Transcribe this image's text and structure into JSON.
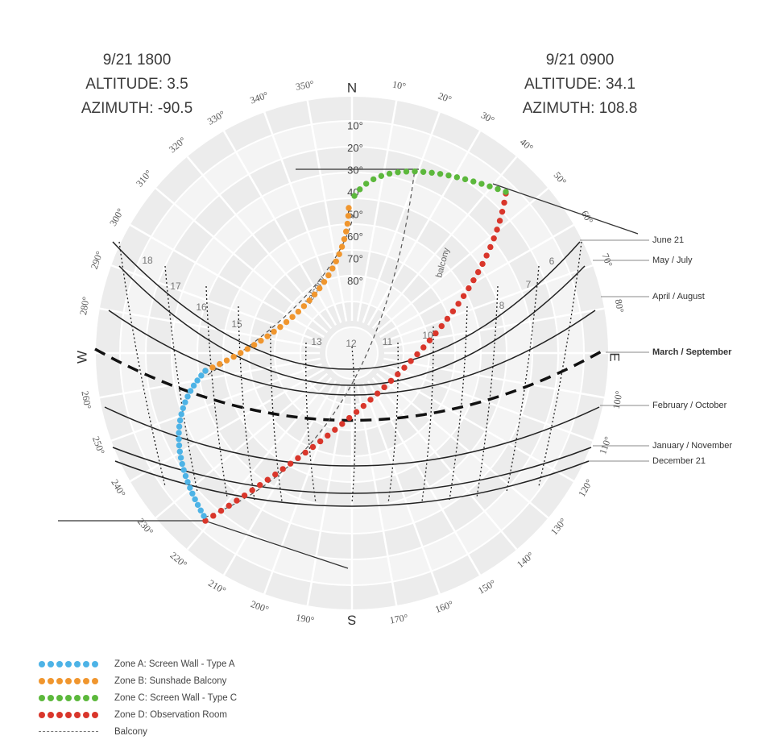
{
  "corner_left": {
    "line1": "9/21 1800",
    "line2": "ALTITUDE: 3.5",
    "line3": "AZIMUTH: -90.5"
  },
  "corner_right": {
    "line1": "9/21 0900",
    "line2": "ALTITUDE: 34.1",
    "line3": "AZIMUTH: 108.8"
  },
  "cardinals": {
    "north": "N",
    "south": "S",
    "east": "E",
    "west": "W"
  },
  "azimuth_labels": [
    {
      "az": 10,
      "label": "10°"
    },
    {
      "az": 20,
      "label": "20°"
    },
    {
      "az": 30,
      "label": "30°"
    },
    {
      "az": 40,
      "label": "40°"
    },
    {
      "az": 50,
      "label": "50°"
    },
    {
      "az": 60,
      "label": "60°"
    },
    {
      "az": 70,
      "label": "70°"
    },
    {
      "az": 80,
      "label": "80°"
    },
    {
      "az": 100,
      "label": "100°"
    },
    {
      "az": 110,
      "label": "110°"
    },
    {
      "az": 120,
      "label": "120°"
    },
    {
      "az": 130,
      "label": "130°"
    },
    {
      "az": 140,
      "label": "140°"
    },
    {
      "az": 150,
      "label": "150°"
    },
    {
      "az": 160,
      "label": "160°"
    },
    {
      "az": 170,
      "label": "170°"
    },
    {
      "az": 190,
      "label": "190°"
    },
    {
      "az": 200,
      "label": "200°"
    },
    {
      "az": 210,
      "label": "210°"
    },
    {
      "az": 220,
      "label": "220°"
    },
    {
      "az": 230,
      "label": "230°"
    },
    {
      "az": 240,
      "label": "240°"
    },
    {
      "az": 250,
      "label": "250°"
    },
    {
      "az": 260,
      "label": "260°"
    },
    {
      "az": 280,
      "label": "280°"
    },
    {
      "az": 290,
      "label": "290°"
    },
    {
      "az": 300,
      "label": "300°"
    },
    {
      "az": 310,
      "label": "310°"
    },
    {
      "az": 320,
      "label": "320°"
    },
    {
      "az": 330,
      "label": "330°"
    },
    {
      "az": 340,
      "label": "340°"
    },
    {
      "az": 350,
      "label": "350°"
    }
  ],
  "altitude_labels": [
    {
      "alt": 10,
      "label": "10°"
    },
    {
      "alt": 20,
      "label": "20°"
    },
    {
      "alt": 30,
      "label": "30°"
    },
    {
      "alt": 40,
      "label": "40°"
    },
    {
      "alt": 50,
      "label": "50°"
    },
    {
      "alt": 60,
      "label": "60°"
    },
    {
      "alt": 70,
      "label": "70°"
    },
    {
      "alt": 80,
      "label": "80°"
    }
  ],
  "hour_labels": [
    "6",
    "7",
    "8",
    "10",
    "11",
    "12",
    "13",
    "15",
    "16",
    "17",
    "18"
  ],
  "date_labels": [
    {
      "label": "June 21",
      "bold": false
    },
    {
      "label": "May / July",
      "bold": false
    },
    {
      "label": "April / August",
      "bold": false
    },
    {
      "label": "March / September",
      "bold": true
    },
    {
      "label": "February / October",
      "bold": false
    },
    {
      "label": "January / November",
      "bold": false
    },
    {
      "label": "December 21",
      "bold": false
    }
  ],
  "balcony_label": "balcony",
  "zones": {
    "a": {
      "color": "#4db3e6",
      "label": "Zone A: Screen Wall - Type A"
    },
    "b": {
      "color": "#f0962e",
      "label": "Zone B: Sunshade Balcony"
    },
    "c": {
      "color": "#5cb83c",
      "label": "Zone C: Screen Wall - Type C"
    },
    "d": {
      "color": "#d9362b",
      "label": "Zone D: Observation Room"
    }
  },
  "legend": [
    {
      "key": "a",
      "label": "Zone A: Screen Wall - Type A",
      "color": "#4db3e6",
      "style": "dots"
    },
    {
      "key": "b",
      "label": "Zone B: Sunshade Balcony",
      "color": "#f0962e",
      "style": "dots"
    },
    {
      "key": "c",
      "label": "Zone C: Screen Wall - Type C",
      "color": "#5cb83c",
      "style": "dots"
    },
    {
      "key": "d",
      "label": "Zone D: Observation Room",
      "color": "#d9362b",
      "style": "dots"
    },
    {
      "key": "balcony",
      "label": "Balcony",
      "color": "#777777",
      "style": "dashed"
    }
  ]
}
